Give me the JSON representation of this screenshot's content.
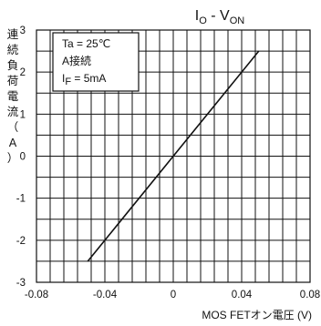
{
  "chart_data": {
    "type": "line",
    "title": {
      "main": "I",
      "main_sub": "O",
      "sep": " - V",
      "sep_sub": "ON"
    },
    "xlabel": "MOS FETオン電圧 (V)",
    "ylabel": "連続負荷電流（A）",
    "xlim": [
      -0.08,
      0.08
    ],
    "ylim": [
      -3,
      3
    ],
    "x_ticks": [
      "-0.08",
      "-0.04",
      "0",
      "0.04",
      "0.08"
    ],
    "y_ticks": [
      "3",
      "2",
      "1",
      "0",
      "-1",
      "-2",
      "-3"
    ],
    "grid": true,
    "conditions": {
      "line1": "Ta = 25℃",
      "line2": "A接続",
      "line3_main": "I",
      "line3_sub": "F",
      "line3_rest": " = 5mA"
    },
    "series": [
      {
        "x": [
          -0.05,
          0.05
        ],
        "y": [
          -2.5,
          2.5
        ]
      }
    ]
  }
}
